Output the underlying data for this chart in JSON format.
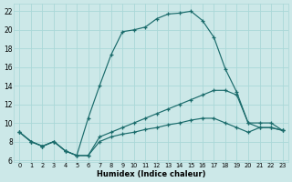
{
  "bg_color": "#cce8e8",
  "grid_color": "#aad8d8",
  "line_color": "#1a6b6b",
  "xlabel": "Humidex (Indice chaleur)",
  "xlim": [
    -0.5,
    23.5
  ],
  "ylim": [
    5.8,
    22.8
  ],
  "xtick_vals": [
    0,
    1,
    2,
    3,
    4,
    5,
    6,
    7,
    8,
    9,
    10,
    11,
    12,
    13,
    14,
    15,
    16,
    17,
    18,
    19,
    20,
    21,
    22,
    23
  ],
  "xtick_labels": [
    "0",
    "1",
    "2",
    "3",
    "4",
    "5",
    "6",
    "7",
    "8",
    "9",
    "10",
    "11",
    "12",
    "13",
    "14",
    "15",
    "16",
    "17",
    "18",
    "19",
    "20",
    "21",
    "22",
    "23"
  ],
  "ytick_vals": [
    6,
    8,
    10,
    12,
    14,
    16,
    18,
    20,
    22
  ],
  "ytick_labels": [
    "6",
    "8",
    "10",
    "12",
    "14",
    "16",
    "18",
    "20",
    "22"
  ],
  "line1_x": [
    0,
    1,
    2,
    3,
    4,
    5,
    6,
    7,
    8,
    9,
    10,
    11,
    12,
    13,
    14,
    15,
    16,
    17,
    18,
    19,
    20,
    21,
    22,
    23
  ],
  "line1_y": [
    9.0,
    8.0,
    7.5,
    8.0,
    7.0,
    6.5,
    6.5,
    8.0,
    8.5,
    8.8,
    9.0,
    9.3,
    9.5,
    9.8,
    10.0,
    10.3,
    10.5,
    10.5,
    10.0,
    9.5,
    9.0,
    9.5,
    9.5,
    9.2
  ],
  "line2_x": [
    0,
    1,
    2,
    3,
    4,
    5,
    6,
    7,
    8,
    9,
    10,
    11,
    12,
    13,
    14,
    15,
    16,
    17,
    18,
    19,
    20,
    21,
    22,
    23
  ],
  "line2_y": [
    9.0,
    8.0,
    7.5,
    8.0,
    7.0,
    6.5,
    6.5,
    8.5,
    9.0,
    9.5,
    10.0,
    10.5,
    11.0,
    11.5,
    12.0,
    12.5,
    13.0,
    13.5,
    13.5,
    13.0,
    10.0,
    10.0,
    10.0,
    9.2
  ],
  "line3_x": [
    0,
    1,
    2,
    3,
    4,
    5,
    6,
    7,
    8,
    9,
    10,
    11,
    12,
    13,
    14,
    15,
    16,
    17,
    18,
    19,
    20,
    21,
    22,
    23
  ],
  "line3_y": [
    9.0,
    8.0,
    7.5,
    8.0,
    7.0,
    6.5,
    10.5,
    14.0,
    17.3,
    19.8,
    20.0,
    20.3,
    21.2,
    21.7,
    21.8,
    22.0,
    21.0,
    19.2,
    15.8,
    13.3,
    10.0,
    9.5,
    9.5,
    9.2
  ]
}
